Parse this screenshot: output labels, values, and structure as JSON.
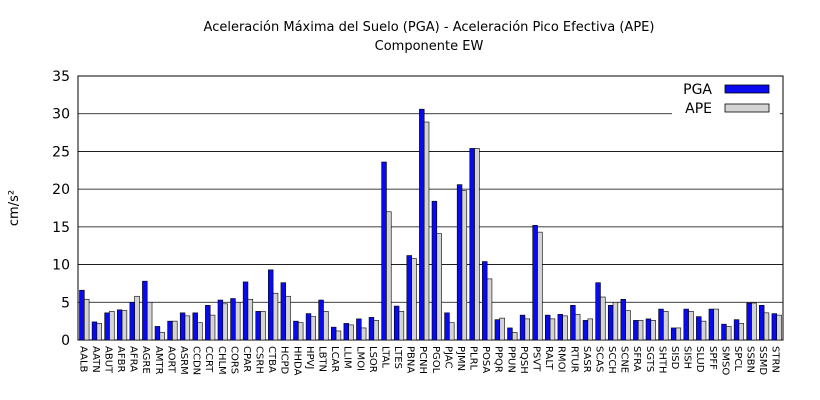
{
  "chart_data": {
    "type": "bar",
    "title": "Aceleración Máxima del Suelo (PGA) -  Aceleración Pico Efectiva (APE)",
    "subtitle": "Componente EW",
    "y_label": "cm/s²",
    "categories": [
      "AALB",
      "AATN",
      "ABUT",
      "AFBR",
      "AFRA",
      "AGRE",
      "AMTR",
      "AORT",
      "ASRM",
      "CCDN",
      "CCRT",
      "CHLM",
      "CORS",
      "CPAR",
      "CSRH",
      "CTBA",
      "HCPD",
      "HHDA",
      "HPVJ",
      "LBTN",
      "LCAR",
      "LLIM",
      "LMOI",
      "LSOR",
      "LTAL",
      "LTES",
      "PBNA",
      "PCNH",
      "PGOL",
      "PJAC",
      "PJMN",
      "PLRL",
      "POSA",
      "PPQR",
      "PPUN",
      "PQSH",
      "PSVT",
      "RALT",
      "RMOI",
      "RTUR",
      "SASR",
      "SCAS",
      "SCCH",
      "SCNE",
      "SFRA",
      "SGTS",
      "SHTH",
      "SISD",
      "SISH",
      "SLUD",
      "SPFF",
      "SMSO",
      "SPCL",
      "SSBN",
      "SSMD",
      "STRN"
    ],
    "series": [
      {
        "name": "PGA",
        "color": "#0a0af0",
        "values": [
          6.6,
          2.4,
          3.6,
          4.0,
          5.0,
          7.8,
          1.8,
          2.5,
          3.6,
          3.6,
          4.6,
          5.3,
          5.5,
          7.7,
          3.8,
          9.3,
          7.6,
          2.5,
          3.5,
          5.3,
          1.7,
          2.2,
          2.8,
          3.0,
          23.6,
          4.5,
          11.2,
          30.6,
          18.4,
          3.6,
          20.6,
          25.4,
          10.4,
          2.7,
          1.6,
          3.3,
          15.2,
          3.3,
          3.4,
          4.6,
          2.6,
          7.6,
          4.6,
          5.4,
          2.6,
          2.8,
          4.1,
          1.6,
          4.1,
          3.1,
          4.1,
          2.1,
          2.7,
          4.9,
          4.6,
          3.5
        ]
      },
      {
        "name": "APE",
        "color": "#d4d4d4",
        "values": [
          5.4,
          2.2,
          3.8,
          3.9,
          5.8,
          5.0,
          1.0,
          2.5,
          3.2,
          2.3,
          3.3,
          4.8,
          5.0,
          5.4,
          3.8,
          6.2,
          5.8,
          2.3,
          3.1,
          3.8,
          1.2,
          2.0,
          1.6,
          2.6,
          17.0,
          3.8,
          10.8,
          28.9,
          14.1,
          2.3,
          19.8,
          25.4,
          8.1,
          2.9,
          1.0,
          2.8,
          14.3,
          2.8,
          3.2,
          3.4,
          2.8,
          5.7,
          5.0,
          3.9,
          2.6,
          2.6,
          3.8,
          1.6,
          3.8,
          2.5,
          4.1,
          1.8,
          2.2,
          4.9,
          3.6,
          3.3
        ]
      }
    ],
    "ylim": [
      0,
      35
    ],
    "yticks": [
      0,
      5,
      10,
      15,
      20,
      25,
      30,
      35
    ],
    "grid": true,
    "legend": "top-right"
  }
}
